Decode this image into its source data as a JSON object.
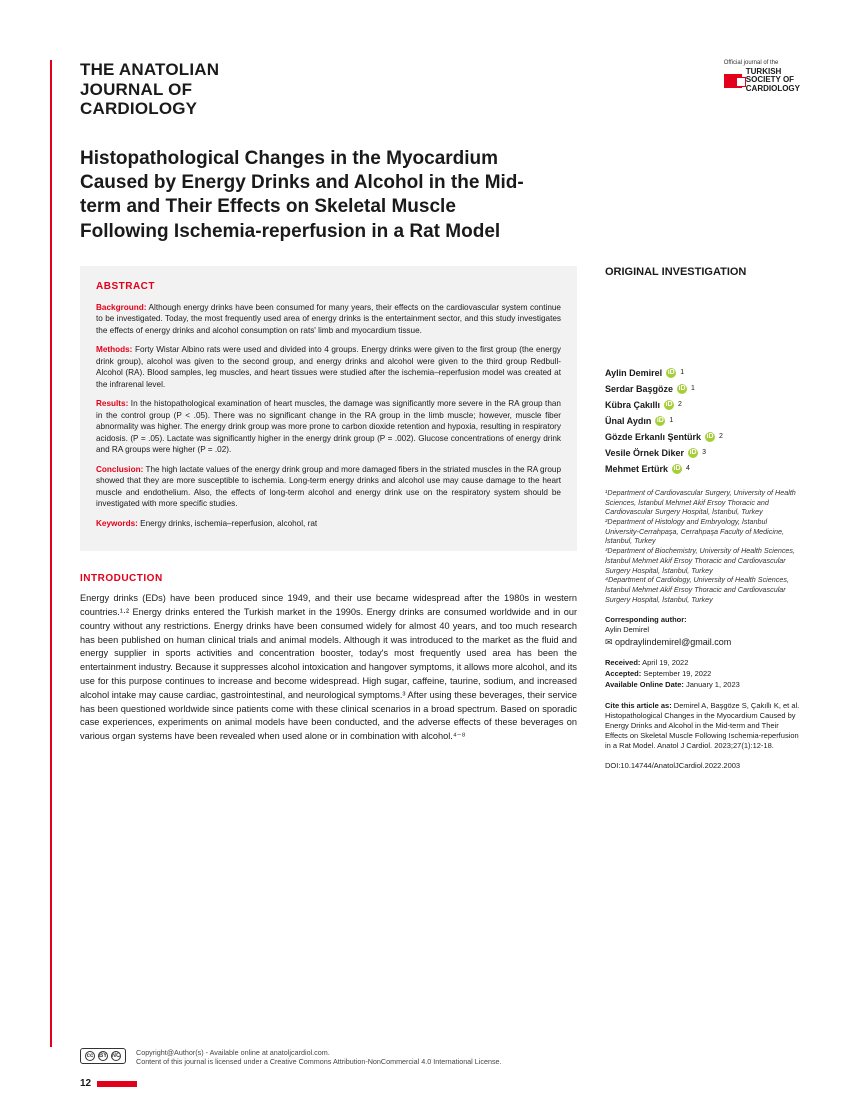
{
  "colors": {
    "accent": "#e2001a",
    "abstract_bg": "#f2f2f2",
    "orcid": "#a6ce39"
  },
  "journal": {
    "title_line1": "THE ANATOLIAN",
    "title_line2": "JOURNAL OF",
    "title_line3": "CARDIOLOGY",
    "society_top": "Official journal of the",
    "society_line1": "TURKISH",
    "society_line2": "SOCIETY OF",
    "society_line3": "CARDIOLOGY"
  },
  "article_title": "Histopathological Changes in the Myocardium Caused by Energy Drinks and Alcohol in the Mid-term and Their Effects on Skeletal Muscle Following Ischemia-reperfusion in a Rat Model",
  "abstract": {
    "heading": "ABSTRACT",
    "background_label": "Background:",
    "background": " Although energy drinks have been consumed for many years, their effects on the cardiovascular system continue to be investigated. Today, the most frequently used area of energy drinks is the entertainment sector, and this study investigates the effects of energy drinks and alcohol consumption on rats' limb and myocardium tissue.",
    "methods_label": "Methods:",
    "methods": " Forty Wistar Albino rats were used and divided into 4 groups. Energy drinks were given to the first group (the energy drink group), alcohol was given to the second group, and energy drinks and alcohol were given to the third group Redbull-Alcohol (RA). Blood samples, leg muscles, and heart tissues were studied after the ischemia–reperfusion model was created at the infrarenal level.",
    "results_label": "Results:",
    "results": " In the histopathological examination of heart muscles, the damage was significantly more severe in the RA group than in the control group (P < .05). There was no significant change in the RA group in the limb muscle; however, muscle fiber abnormality was higher. The energy drink group was more prone to carbon dioxide retention and hypoxia, resulting in respiratory acidosis. (P = .05). Lactate was significantly higher in the energy drink group (P = .002). Glucose concentrations of energy drink and RA groups were higher (P = .02).",
    "conclusion_label": "Conclusion:",
    "conclusion": " The high lactate values of the energy drink group and more damaged fibers in the striated muscles in the RA group showed that they are more susceptible to ischemia. Long-term energy drinks and alcohol use may cause damage to the heart muscle and endothelium. Also, the effects of long-term alcohol and energy drink use on the respiratory system should be investigated with more specific studies.",
    "keywords_label": "Keywords:",
    "keywords": " Energy drinks, ischemia–reperfusion, alcohol, rat"
  },
  "intro": {
    "heading": "INTRODUCTION",
    "body": "Energy drinks (EDs) have been produced since 1949, and their use became widespread after the 1980s in western countries.¹·² Energy drinks entered the Turkish market in the 1990s. Energy drinks are consumed worldwide and in our country without any restrictions. Energy drinks have been consumed widely for almost 40 years, and too much research has been published on human clinical trials and animal models. Although it was introduced to the market as the fluid and energy supplier in sports activities and concentration booster, today's most frequently used area has been the entertainment industry. Because it suppresses alcohol intoxication and hangover symptoms, it allows more alcohol, and its use for this purpose continues to increase and become widespread. High sugar, caffeine, taurine, sodium, and increased alcohol intake may cause cardiac, gastrointestinal, and neurological symptoms.³ After using these beverages, their service has been questioned worldwide since patients come with these clinical scenarios in a broad spectrum. Based on sporadic case experiences, experiments on animal models have been conducted, and the adverse effects of these beverages on various organ systems have been revealed when used alone or in combination with alcohol.⁴⁻⁸"
  },
  "right": {
    "section": "ORIGINAL INVESTIGATION",
    "authors": [
      {
        "name": "Aylin Demirel",
        "aff": "1"
      },
      {
        "name": "Serdar Başgöze",
        "aff": "1"
      },
      {
        "name": "Kübra Çakıllı",
        "aff": "2"
      },
      {
        "name": "Ünal Aydın",
        "aff": "1"
      },
      {
        "name": "Gözde Erkanlı Şentürk",
        "aff": "2"
      },
      {
        "name": "Vesile Örnek Diker",
        "aff": "3"
      },
      {
        "name": "Mehmet Ertürk",
        "aff": "4"
      }
    ],
    "affiliations": "¹Department of Cardiovascular Surgery, University of Health Sciences, İstanbul Mehmet Akif Ersoy Thoracic and Cardiovascular Surgery Hospital, İstanbul, Turkey\n²Department of Histology and Embryology, İstanbul University-Cerrahpaşa, Cerrahpaşa Faculty of Medicine, İstanbul, Turkey\n³Department of Biochemistry, University of Health Sciences, İstanbul Mehmet Akif Ersoy Thoracic and Cardiovascular Surgery Hospital, İstanbul, Turkey\n⁴Department of Cardiology, University of Health Sciences, İstanbul Mehmet Akif Ersoy Thoracic and Cardiovascular Surgery Hospital, İstanbul, Turkey",
    "corr_label": "Corresponding author:",
    "corr_name": "Aylin Demirel",
    "corr_email": "✉ opdraylindemirel@gmail.com",
    "received_label": "Received:",
    "received": " April 19, 2022",
    "accepted_label": "Accepted:",
    "accepted": " September 19, 2022",
    "online_label": "Available Online Date:",
    "online": " January 1, 2023",
    "cite_label": "Cite this article as:",
    "cite": " Demirel A, Başgöze S, Çakıllı K, et al. Histopathological Changes in the Myocardium Caused by Energy Drinks and Alcohol in the Mid-term and Their Effects on Skeletal Muscle Following Ischemia-reperfusion in a Rat Model. Anatol J Cardiol. 2023;27(1):12-18.",
    "doi": "DOI:10.14744/AnatolJCardiol.2022.2003"
  },
  "footer": {
    "line1": "Copyright@Author(s) - Available online at anatoljcardiol.com.",
    "line2": "Content of this journal is licensed under a Creative Commons Attribution-NonCommercial 4.0 International License.",
    "cc": "cc",
    "by": "BY",
    "nc": "NC"
  },
  "page_number": "12"
}
